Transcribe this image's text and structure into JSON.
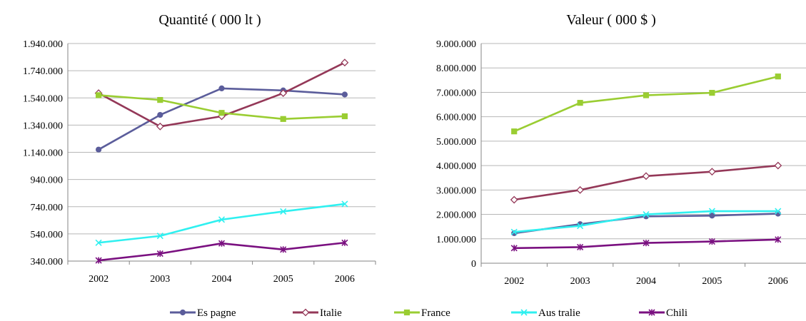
{
  "colors": {
    "Espagne": "#5B5D9B",
    "Italie": "#943858",
    "France": "#9ACD32",
    "Australie": "#2FF0F0",
    "Chili": "#7A1080",
    "grid": "#B7B7B7",
    "axis": "#868686"
  },
  "chart_data": [
    {
      "type": "line",
      "title": "Quantité ( 000 lt )",
      "categories": [
        "2002",
        "2003",
        "2004",
        "2005",
        "2006"
      ],
      "ylim": [
        340000,
        1940000
      ],
      "yticks": [
        340000,
        540000,
        740000,
        940000,
        1140000,
        1340000,
        1540000,
        1740000,
        1940000
      ],
      "ytick_labels": [
        "340.000",
        "540.000",
        "740.000",
        "940.000",
        "1.140.000",
        "1.340.000",
        "1.540.000",
        "1.740.000",
        "1.940.000"
      ],
      "grid": true,
      "legend": "bottom",
      "series": [
        {
          "name": "Espagne",
          "marker": "circle",
          "values": [
            1160000,
            1415000,
            1610000,
            1595000,
            1565000
          ]
        },
        {
          "name": "Italie",
          "marker": "diamond-open",
          "values": [
            1575000,
            1330000,
            1405000,
            1575000,
            1800000
          ]
        },
        {
          "name": "France",
          "marker": "square",
          "values": [
            1560000,
            1525000,
            1430000,
            1385000,
            1405000
          ]
        },
        {
          "name": "Australie",
          "marker": "x",
          "values": [
            475000,
            525000,
            645000,
            705000,
            760000
          ]
        },
        {
          "name": "Chili",
          "marker": "star",
          "values": [
            345000,
            395000,
            470000,
            425000,
            475000
          ]
        }
      ]
    },
    {
      "type": "line",
      "title": "Valeur ( 000 $ )",
      "categories": [
        "2002",
        "2003",
        "2004",
        "2005",
        "2006"
      ],
      "ylim": [
        0,
        9000000
      ],
      "yticks": [
        0,
        1000000,
        2000000,
        3000000,
        4000000,
        5000000,
        6000000,
        7000000,
        8000000,
        9000000
      ],
      "ytick_labels": [
        "0",
        "1.000.000",
        "2.000.000",
        "3.000.000",
        "4.000.000",
        "5.000.000",
        "6.000.000",
        "7.000.000",
        "8.000.000",
        "9.000.000"
      ],
      "grid": true,
      "legend": "bottom",
      "series": [
        {
          "name": "Espagne",
          "marker": "circle",
          "values": [
            1230000,
            1600000,
            1920000,
            1950000,
            2030000
          ]
        },
        {
          "name": "Italie",
          "marker": "diamond-open",
          "values": [
            2600000,
            3000000,
            3570000,
            3750000,
            4000000
          ]
        },
        {
          "name": "France",
          "marker": "square",
          "values": [
            5400000,
            6570000,
            6880000,
            6980000,
            7650000
          ]
        },
        {
          "name": "Australie",
          "marker": "x",
          "values": [
            1280000,
            1530000,
            2000000,
            2130000,
            2130000
          ]
        },
        {
          "name": "Chili",
          "marker": "star",
          "values": [
            620000,
            660000,
            830000,
            890000,
            970000
          ]
        }
      ]
    }
  ],
  "legend": {
    "items": [
      {
        "label": "Es pagne",
        "series": "Espagne",
        "marker": "circle"
      },
      {
        "label": "Italie",
        "series": "Italie",
        "marker": "diamond-open"
      },
      {
        "label": "France",
        "series": "France",
        "marker": "square"
      },
      {
        "label": "Aus tralie",
        "series": "Australie",
        "marker": "x"
      },
      {
        "label": "Chili",
        "series": "Chili",
        "marker": "star"
      }
    ]
  }
}
